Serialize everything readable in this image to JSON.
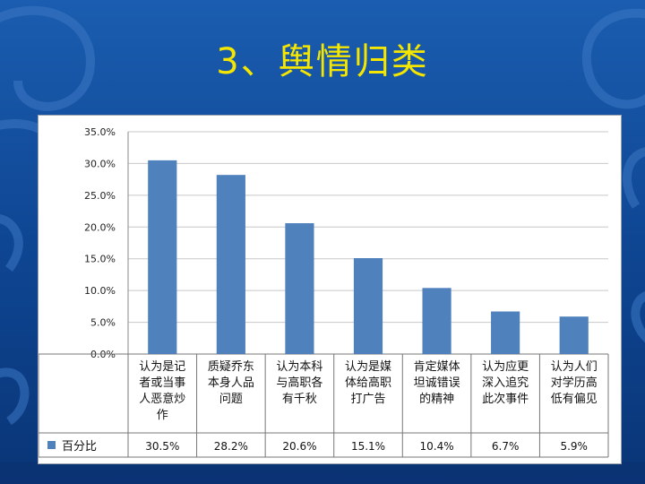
{
  "slide": {
    "title": "3、舆情归类",
    "colors": {
      "background": "#0d3f86",
      "title": "#f5e600",
      "bar": "#4f81bd"
    }
  },
  "chart_data": {
    "type": "bar",
    "categories": [
      [
        "认为是记",
        "者或当事",
        "人恶意炒",
        "作"
      ],
      [
        "质疑乔东",
        "本身人品",
        "问题"
      ],
      [
        "认为本科",
        "与高职各",
        "有千秋"
      ],
      [
        "认为是媒",
        "体给高职",
        "打广告"
      ],
      [
        "肯定媒体",
        "坦诚错误",
        "的精神"
      ],
      [
        "认为应更",
        "深入追究",
        "此次事件"
      ],
      [
        "认为人们",
        "对学历高",
        "低有偏见"
      ]
    ],
    "series": [
      {
        "name": "百分比",
        "values": [
          30.5,
          28.2,
          20.6,
          15.1,
          10.4,
          6.7,
          5.9
        ],
        "labels": [
          "30.5%",
          "28.2%",
          "20.6%",
          "15.1%",
          "10.4%",
          "6.7%",
          "5.9%"
        ],
        "color": "#4f81bd"
      }
    ],
    "ylim": [
      0,
      35
    ],
    "yticks": [
      "0.0%",
      "5.0%",
      "10.0%",
      "15.0%",
      "20.0%",
      "25.0%",
      "30.0%",
      "35.0%"
    ],
    "grid": true,
    "legend": "data-table",
    "xlabel": "",
    "ylabel": ""
  }
}
